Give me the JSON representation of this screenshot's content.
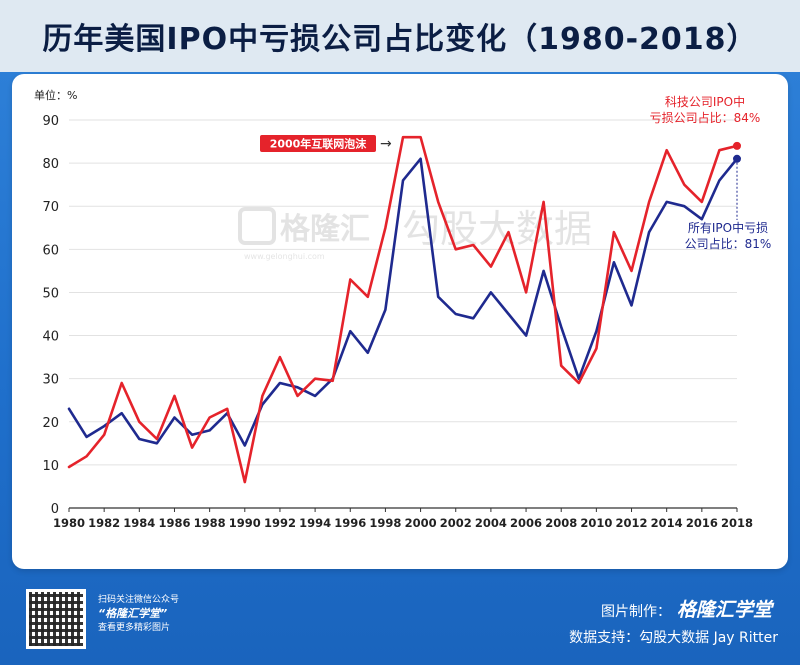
{
  "header": {
    "title": "历年美国IPO中亏损公司占比变化（1980-2018）"
  },
  "colors": {
    "tech": "#e5232b",
    "all": "#1f2a8f",
    "accent_bg": "#1f6fcb",
    "title": "#0b1e44"
  },
  "watermark": {
    "brand": "格隆汇",
    "site": "www.gelonghui.com",
    "source": "勾股大数据"
  },
  "chart_data": {
    "type": "line",
    "title": "历年美国IPO中亏损公司占比变化（1980-2018）",
    "ylabel": "单位：%",
    "xlabel": "",
    "xlim": [
      1980,
      2018
    ],
    "ylim": [
      0,
      90
    ],
    "yticks": [
      0,
      10,
      20,
      30,
      40,
      50,
      60,
      70,
      80,
      90
    ],
    "xticks": [
      1980,
      1982,
      1984,
      1986,
      1988,
      1990,
      1992,
      1994,
      1996,
      1998,
      2000,
      2002,
      2004,
      2006,
      2008,
      2010,
      2012,
      2014,
      2016,
      2018
    ],
    "grid": true,
    "x": [
      1980,
      1981,
      1982,
      1983,
      1984,
      1985,
      1986,
      1987,
      1988,
      1989,
      1990,
      1991,
      1992,
      1993,
      1994,
      1995,
      1996,
      1997,
      1998,
      1999,
      2000,
      2001,
      2002,
      2003,
      2004,
      2005,
      2006,
      2007,
      2008,
      2009,
      2010,
      2011,
      2012,
      2013,
      2014,
      2015,
      2016,
      2017,
      2018
    ],
    "series": [
      {
        "name": "科技公司IPO中亏损公司占比",
        "color": "#e5232b",
        "values": [
          9.5,
          12,
          17,
          29,
          20,
          16,
          26,
          14,
          21,
          23,
          6,
          26,
          35,
          26,
          30,
          29.5,
          53,
          49,
          65,
          86,
          86,
          71,
          60,
          61,
          56,
          64,
          50,
          71,
          33,
          29,
          37,
          64,
          55,
          71,
          83,
          75,
          71,
          83,
          84
        ]
      },
      {
        "name": "所有IPO中亏损公司占比",
        "color": "#1f2a8f",
        "values": [
          23,
          16.5,
          19,
          22,
          16,
          15,
          21,
          17,
          18,
          22,
          14.5,
          24,
          29,
          28,
          26,
          30,
          41,
          36,
          46,
          76,
          81,
          49,
          45,
          44,
          50,
          45,
          40,
          55,
          42,
          30,
          41,
          57,
          47,
          64,
          71,
          70,
          67,
          76,
          81
        ]
      }
    ],
    "annotations": [
      {
        "text": "2000年互联网泡沫",
        "arrow": "→"
      },
      {
        "text": "科技公司IPO中",
        "text2": "亏损公司占比：84%",
        "series": 0
      },
      {
        "text": "所有IPO中亏损",
        "text2": "公司占比：81%",
        "series": 1
      }
    ]
  },
  "footer": {
    "qr_line1": "扫码关注微信公众号",
    "qr_brand": "“格隆汇学堂”",
    "qr_line3": "查看更多精彩图片",
    "made_label": "图片制作：",
    "made_brand": "格隆汇学堂",
    "data_label": "数据支持：勾股大数据  Jay Ritter"
  }
}
